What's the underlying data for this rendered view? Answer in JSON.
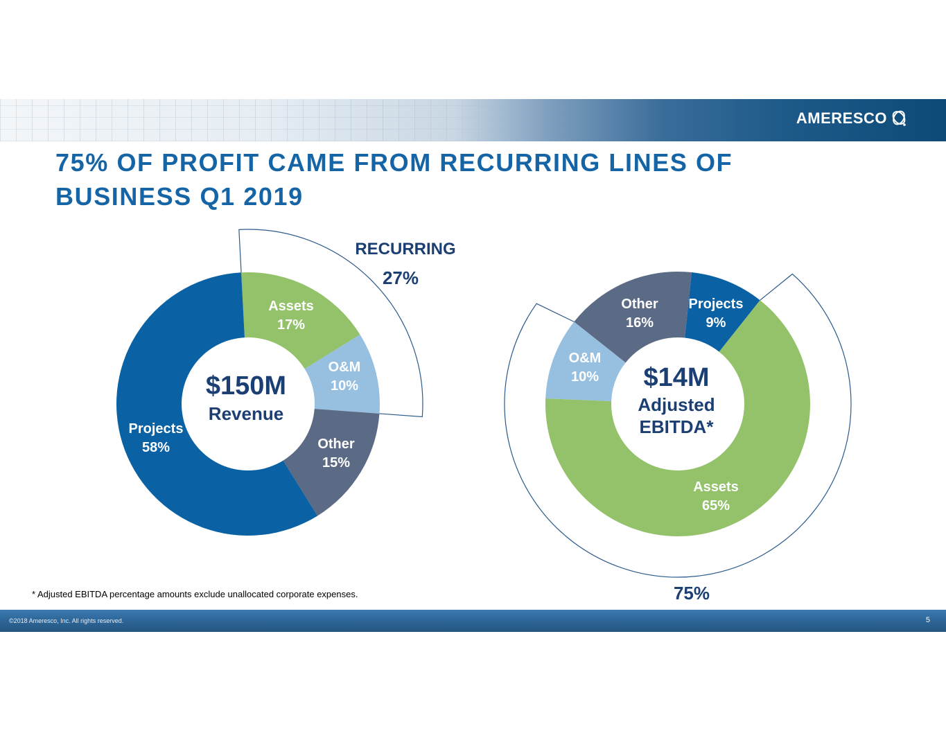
{
  "header": {
    "brand": "AMERESCO",
    "logo_icon": "ameresco-swirl-icon"
  },
  "title": {
    "line1": "75% OF PROFIT CAME FROM RECURRING LINES OF",
    "line2": "BUSINESS Q1 2019"
  },
  "chart_data": [
    {
      "type": "pie",
      "variant": "donut",
      "title": "Revenue",
      "center_value": "$150M",
      "center_label": "Revenue",
      "categories": [
        "Assets",
        "O&M",
        "Other",
        "Projects"
      ],
      "values": [
        17,
        10,
        15,
        58
      ],
      "value_labels": [
        "17%",
        "10%",
        "15%",
        "58%"
      ],
      "colors": [
        "#93c26a",
        "#96bfe0",
        "#5c6b85",
        "#0a62a5"
      ],
      "callout": {
        "label": "RECURRING",
        "value_label": "27%",
        "covers": [
          "Assets",
          "O&M"
        ],
        "value": 27
      }
    },
    {
      "type": "pie",
      "variant": "donut",
      "title": "Adjusted EBITDA*",
      "center_value": "$14M",
      "center_label_line1": "Adjusted",
      "center_label_line2": "EBITDA*",
      "categories": [
        "Projects",
        "Assets",
        "O&M",
        "Other"
      ],
      "values": [
        9,
        65,
        10,
        16
      ],
      "value_labels": [
        "9%",
        "65%",
        "10%",
        "16%"
      ],
      "colors": [
        "#0a62a5",
        "#93c26a",
        "#96bfe0",
        "#5c6b85"
      ],
      "callout": {
        "label": "",
        "value_label": "75%",
        "covers": [
          "Assets",
          "O&M"
        ],
        "value": 75
      }
    }
  ],
  "footnote": "* Adjusted EBITDA percentage amounts exclude unallocated corporate expenses.",
  "footer": {
    "copyright": "©2018 Ameresco, Inc. All rights reserved.",
    "page_number": "5"
  },
  "colors": {
    "title": "#1565a6",
    "dark_navy": "#1c3f73",
    "callout_stroke": "#2a5a8c"
  }
}
